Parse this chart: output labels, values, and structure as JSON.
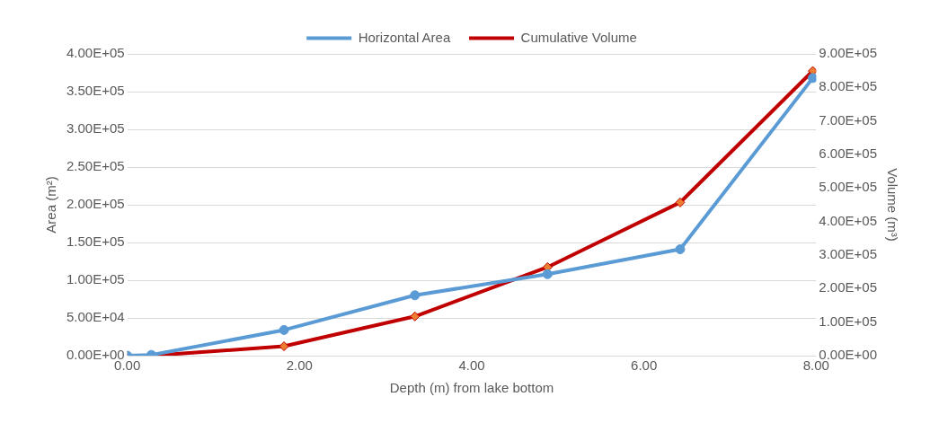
{
  "chart_data": {
    "type": "line",
    "xlabel": "Depth (m) from lake bottom",
    "ylabel": "Area (m²)",
    "y2label": "Volume (m³)",
    "x": [
      0,
      0.28,
      1.82,
      3.34,
      4.88,
      6.42,
      7.96
    ],
    "series": [
      {
        "name": "Horizontal Area",
        "color": "#5b9bd5",
        "marker": "circle",
        "values": [
          0,
          1000,
          34000,
          80000,
          108000,
          141000,
          368000
        ]
      },
      {
        "name": "Cumulative Volume",
        "color": "#c00000",
        "marker": "diamond",
        "axis": "y2",
        "values": [
          0,
          0,
          28000,
          117000,
          264000,
          457000,
          849000
        ]
      }
    ],
    "xlim": [
      0,
      8
    ],
    "xticks": [
      {
        "value": 0,
        "label": "0.00"
      },
      {
        "value": 2,
        "label": "2.00"
      },
      {
        "value": 4,
        "label": "4.00"
      },
      {
        "value": 6,
        "label": "6.00"
      },
      {
        "value": 8,
        "label": "8.00"
      }
    ],
    "ylim": [
      0,
      400000
    ],
    "yticks": [
      {
        "value": 0,
        "label": "0.00E+00"
      },
      {
        "value": 50000,
        "label": "5.00E+04"
      },
      {
        "value": 100000,
        "label": "1.00E+05"
      },
      {
        "value": 150000,
        "label": "1.50E+05"
      },
      {
        "value": 200000,
        "label": "2.00E+05"
      },
      {
        "value": 250000,
        "label": "2.50E+05"
      },
      {
        "value": 300000,
        "label": "3.00E+05"
      },
      {
        "value": 350000,
        "label": "3.50E+05"
      },
      {
        "value": 400000,
        "label": "4.00E+05"
      }
    ],
    "y2lim": [
      0,
      900000
    ],
    "y2ticks": [
      {
        "value": 0,
        "label": "0.00E+00"
      },
      {
        "value": 100000,
        "label": "1.00E+05"
      },
      {
        "value": 200000,
        "label": "2.00E+05"
      },
      {
        "value": 300000,
        "label": "3.00E+05"
      },
      {
        "value": 400000,
        "label": "4.00E+05"
      },
      {
        "value": 500000,
        "label": "5.00E+05"
      },
      {
        "value": 600000,
        "label": "6.00E+05"
      },
      {
        "value": 700000,
        "label": "7.00E+05"
      },
      {
        "value": 800000,
        "label": "8.00E+05"
      },
      {
        "value": 900000,
        "label": "9.00E+05"
      }
    ],
    "grid": "y",
    "legend": "top",
    "line_style": "solid"
  }
}
